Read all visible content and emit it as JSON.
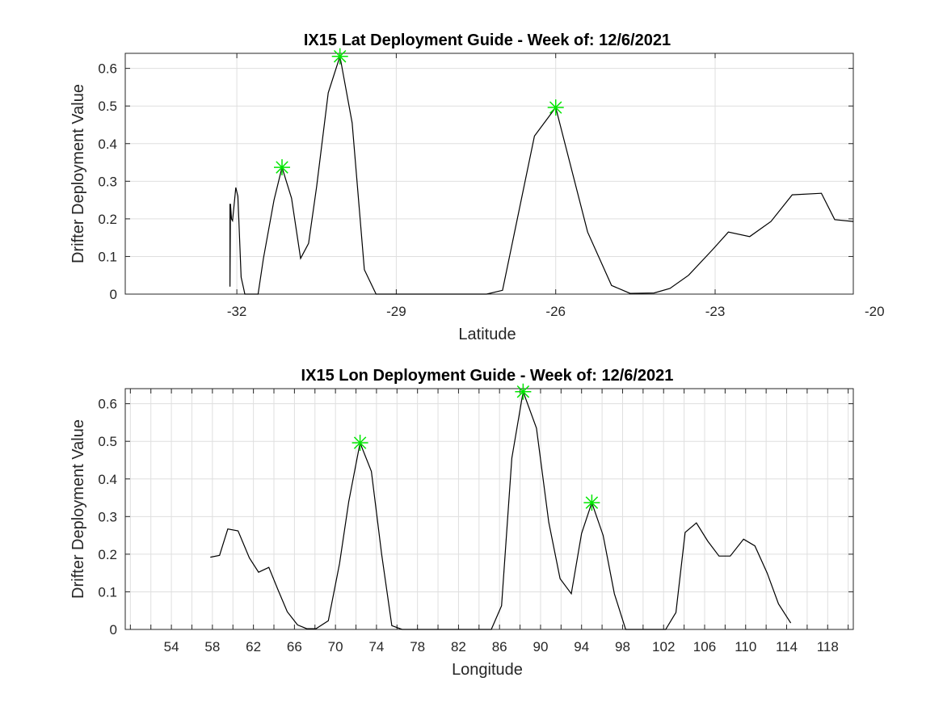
{
  "chart_data": [
    {
      "type": "line",
      "title": "IX15 Lat Deployment Guide - Week of: 12/6/2021",
      "xlabel": "Latitude",
      "ylabel": "Drifter Deployment Value",
      "xlim": [
        -34.1,
        -20.4
      ],
      "ylim": [
        0,
        0.64
      ],
      "xticks": [
        -32,
        -29,
        -26,
        -23,
        -20
      ],
      "yticks": [
        0,
        0.1,
        0.2,
        0.3,
        0.4,
        0.5,
        0.6
      ],
      "grid": true,
      "series": [
        {
          "x": [
            -32.13,
            -32.13,
            -32.12,
            -32.1,
            -32.08,
            -32.02,
            -31.98,
            -31.92,
            -31.87,
            -31.85,
            -31.6,
            -31.5,
            -31.3,
            -31.15,
            -30.97,
            -30.8,
            -30.65,
            -30.5,
            -30.28,
            -30.06,
            -29.83,
            -29.6,
            -29.38,
            -29.1,
            -27.3,
            -27.0,
            -26.4,
            -26.0,
            -25.4,
            -24.95,
            -24.6,
            -24.15,
            -23.85,
            -23.5,
            -23.05,
            -22.75,
            -22.35,
            -21.95,
            -21.55,
            -21.0,
            -20.75,
            -20.4
          ],
          "y": [
            0.24,
            0.02,
            0.24,
            0.2,
            0.195,
            0.283,
            0.26,
            0.045,
            0.013,
            0.0,
            0.0,
            0.095,
            0.25,
            0.337,
            0.255,
            0.095,
            0.135,
            0.285,
            0.535,
            0.632,
            0.455,
            0.065,
            0.0,
            0.0,
            0.0,
            0.01,
            0.42,
            0.496,
            0.165,
            0.023,
            0.002,
            0.003,
            0.015,
            0.05,
            0.118,
            0.165,
            0.153,
            0.193,
            0.264,
            0.268,
            0.198,
            0.193
          ]
        }
      ],
      "peaks": [
        {
          "x": -31.15,
          "y": 0.337
        },
        {
          "x": -30.06,
          "y": 0.632
        },
        {
          "x": -26.0,
          "y": 0.496
        }
      ]
    },
    {
      "type": "line",
      "title": "IX15 Lon Deployment Guide - Week of: 12/6/2021",
      "xlabel": "Longitude",
      "ylabel": "Drifter Deployment Value",
      "xlim": [
        49.5,
        120.5
      ],
      "ylim": [
        0,
        0.64
      ],
      "xticks": [
        54,
        58,
        62,
        66,
        70,
        74,
        78,
        82,
        86,
        90,
        94,
        98,
        102,
        106,
        110,
        114,
        118
      ],
      "xgrid": [
        50,
        52,
        54,
        56,
        58,
        60,
        62,
        64,
        66,
        68,
        70,
        72,
        74,
        76,
        78,
        80,
        82,
        84,
        86,
        88,
        90,
        92,
        94,
        96,
        98,
        100,
        102,
        104,
        106,
        108,
        110,
        112,
        114,
        116,
        118,
        120
      ],
      "yticks": [
        0,
        0.1,
        0.2,
        0.3,
        0.4,
        0.5,
        0.6
      ],
      "grid": true,
      "series": [
        {
          "x": [
            57.8,
            58.7,
            59.5,
            60.5,
            61.6,
            62.5,
            63.5,
            64.4,
            65.3,
            66.3,
            67.2,
            68.1,
            69.3,
            70.4,
            71.3,
            72.4,
            73.5,
            74.5,
            75.5,
            76.5,
            82.2,
            85.2,
            86.2,
            87.2,
            88.3,
            89.6,
            90.8,
            91.9,
            93.0,
            94.0,
            95.0,
            96.1,
            97.2,
            98.3,
            102.2,
            103.2,
            104.1,
            105.2,
            106.3,
            107.4,
            108.5,
            109.8,
            110.9,
            112.1,
            113.2,
            114.4
          ],
          "y": [
            0.192,
            0.197,
            0.267,
            0.262,
            0.19,
            0.152,
            0.165,
            0.105,
            0.047,
            0.012,
            0.002,
            0.002,
            0.023,
            0.175,
            0.34,
            0.496,
            0.42,
            0.2,
            0.01,
            0.0,
            0.0,
            0.0,
            0.063,
            0.455,
            0.632,
            0.535,
            0.285,
            0.135,
            0.095,
            0.255,
            0.337,
            0.25,
            0.095,
            0.0,
            0.0,
            0.045,
            0.258,
            0.283,
            0.235,
            0.195,
            0.195,
            0.24,
            0.222,
            0.15,
            0.068,
            0.017
          ]
        }
      ],
      "peaks": [
        {
          "x": 72.4,
          "y": 0.496
        },
        {
          "x": 88.3,
          "y": 0.632
        },
        {
          "x": 95.0,
          "y": 0.337
        }
      ]
    }
  ]
}
